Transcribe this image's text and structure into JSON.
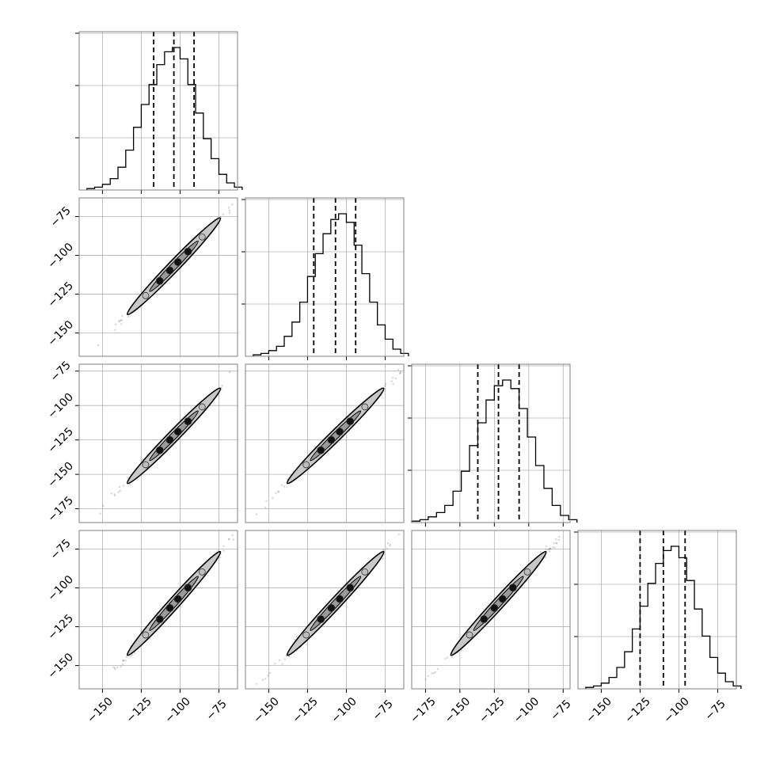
{
  "figure": {
    "type": "corner_plot",
    "n_params": 4,
    "parameter_labels": [
      "",
      "",
      "",
      ""
    ],
    "colors": {
      "line": "#000000",
      "grid": "#b0b0b0",
      "frame": "#808080",
      "contour_fill": "#c8c8c8",
      "scatter": "#8a8a8a"
    }
  },
  "chart_data": {
    "type": "corner",
    "grid": true,
    "ranges": [
      [
        -165,
        -63
      ],
      [
        -165,
        -63
      ],
      [
        -185,
        -70
      ],
      [
        -165,
        -63
      ]
    ],
    "x_ticks": [
      [
        "-150",
        "-125",
        "-100",
        "-75"
      ],
      [
        "-150",
        "-125",
        "-100",
        "-75"
      ],
      [
        "-175",
        "-150",
        "-125",
        "-100",
        "-75"
      ],
      [
        "-150",
        "-125",
        "-100",
        "-75"
      ]
    ],
    "y_ticks": {
      "row1": [
        "-75",
        "-100",
        "-125",
        "-150"
      ],
      "row2": [
        "-75",
        "-100",
        "-125",
        "-150",
        "-175"
      ],
      "row3": [
        "-75",
        "-100",
        "-125",
        "-150"
      ]
    },
    "quantiles": [
      [
        -117,
        -104,
        -91
      ],
      [
        -121,
        -107,
        -94
      ],
      [
        -137,
        -122,
        -107
      ],
      [
        -125,
        -110,
        -96
      ]
    ],
    "histograms": [
      {
        "param": 0,
        "bins": [
          -160,
          -155,
          -150,
          -145,
          -140,
          -135,
          -130,
          -125,
          -120,
          -115,
          -110,
          -105,
          -100,
          -95,
          -90,
          -85,
          -80,
          -75,
          -70,
          -65
        ],
        "counts": [
          1,
          2,
          4,
          8,
          16,
          28,
          44,
          60,
          74,
          88,
          97,
          100,
          92,
          74,
          54,
          36,
          22,
          11,
          5,
          2
        ]
      },
      {
        "param": 1,
        "bins": [
          -160,
          -155,
          -150,
          -145,
          -140,
          -135,
          -130,
          -125,
          -120,
          -115,
          -110,
          -105,
          -100,
          -95,
          -90,
          -85,
          -80,
          -75,
          -70,
          -65
        ],
        "counts": [
          1,
          2,
          4,
          7,
          14,
          24,
          38,
          56,
          72,
          86,
          96,
          100,
          94,
          78,
          58,
          38,
          22,
          12,
          5,
          2
        ]
      },
      {
        "param": 2,
        "bins": [
          -185,
          -179,
          -173,
          -167,
          -161,
          -155,
          -149,
          -143,
          -137,
          -131,
          -125,
          -119,
          -113,
          -107,
          -101,
          -95,
          -89,
          -83,
          -77,
          -71
        ],
        "counts": [
          1,
          2,
          4,
          7,
          12,
          22,
          36,
          54,
          70,
          86,
          96,
          100,
          94,
          80,
          60,
          40,
          24,
          12,
          5,
          2
        ]
      },
      {
        "param": 3,
        "bins": [
          -160,
          -155,
          -150,
          -145,
          -140,
          -135,
          -130,
          -125,
          -120,
          -115,
          -110,
          -105,
          -100,
          -95,
          -90,
          -85,
          -80,
          -75,
          -70,
          -65
        ],
        "counts": [
          1,
          2,
          4,
          8,
          15,
          26,
          42,
          58,
          74,
          88,
          97,
          100,
          92,
          76,
          56,
          37,
          22,
          11,
          5,
          2
        ]
      }
    ],
    "pairs": [
      {
        "x_param": 0,
        "y_param": 1
      },
      {
        "x_param": 0,
        "y_param": 2
      },
      {
        "x_param": 1,
        "y_param": 2
      },
      {
        "x_param": 0,
        "y_param": 3
      },
      {
        "x_param": 1,
        "y_param": 3
      },
      {
        "x_param": 2,
        "y_param": 3
      }
    ]
  }
}
